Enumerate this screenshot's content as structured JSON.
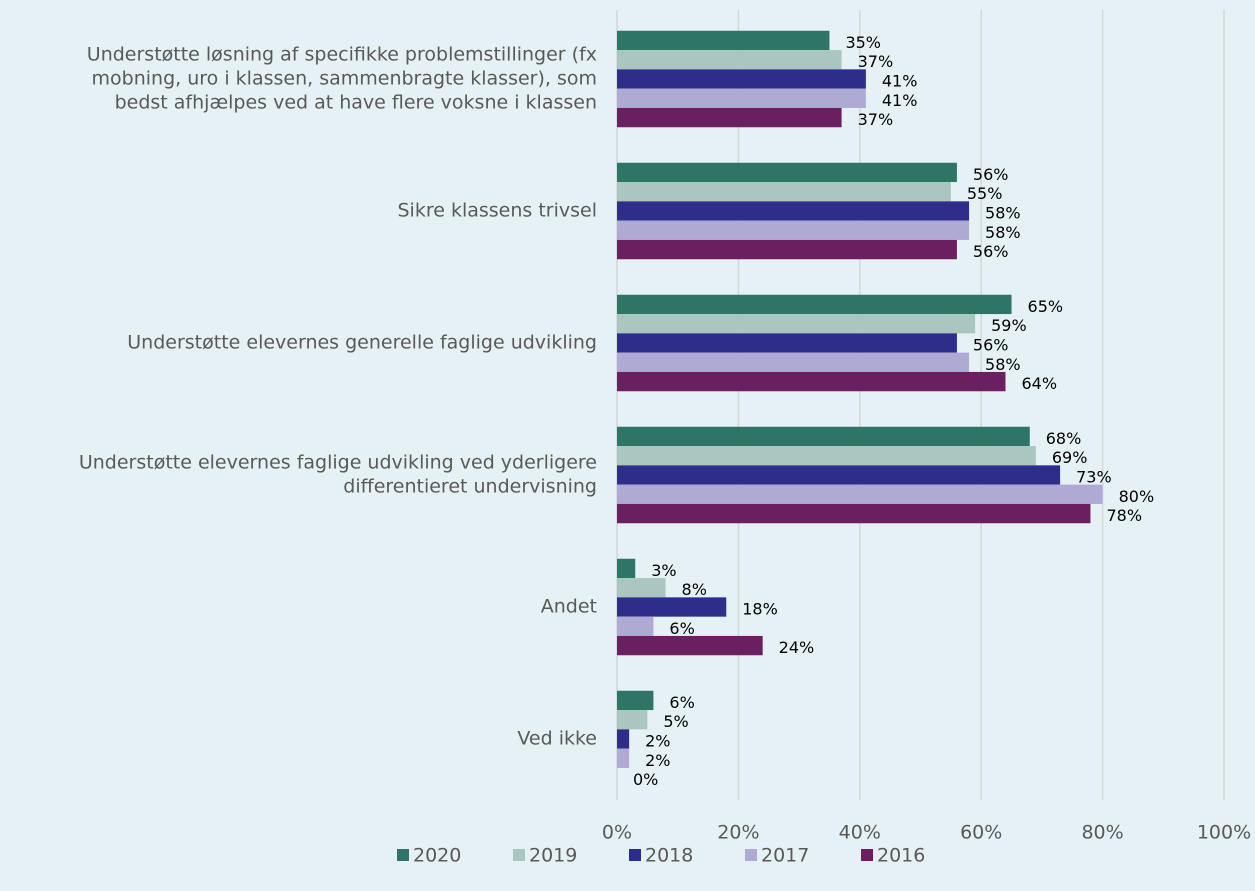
{
  "chart_data": {
    "type": "hbar",
    "categories": [
      [
        "Understøtte løsning af specifikke problemstillinger (fx",
        "mobning, uro i klassen, sammenbragte klasser), som",
        "bedst afhjælpes ved at have flere voksne i klassen"
      ],
      [
        "Sikre klassens trivsel"
      ],
      [
        "Understøtte elevernes generelle faglige udvikling"
      ],
      [
        "Understøtte elevernes faglige udvikling ved yderligere",
        "differentieret undervisning"
      ],
      [
        "Andet"
      ],
      [
        "Ved ikke"
      ]
    ],
    "series": [
      {
        "name": "2020",
        "color": "#2e7566",
        "values": [
          35,
          56,
          65,
          68,
          3,
          6
        ],
        "value_labels": [
          "35%",
          "56%",
          "65%",
          "68%",
          "3%",
          "6%"
        ]
      },
      {
        "name": "2019",
        "color": "#a9c7c0",
        "values": [
          37,
          55,
          59,
          69,
          8,
          5
        ],
        "value_labels": [
          "37%",
          "55%",
          "59%",
          "69%",
          "8%",
          "5%"
        ]
      },
      {
        "name": "2018",
        "color": "#2e2e8a",
        "values": [
          41,
          58,
          56,
          73,
          18,
          2
        ],
        "value_labels": [
          "41%",
          "58%",
          "56%",
          "73%",
          "18%",
          "2%"
        ]
      },
      {
        "name": "2017",
        "color": "#aeaad4",
        "values": [
          41,
          58,
          58,
          80,
          6,
          2
        ],
        "value_labels": [
          "41%",
          "58%",
          "58%",
          "80%",
          "6%",
          "2%"
        ]
      },
      {
        "name": "2016",
        "color": "#6b1f60",
        "values": [
          37,
          56,
          64,
          78,
          24,
          0
        ],
        "value_labels": [
          "37%",
          "56%",
          "64%",
          "78%",
          "24%",
          "0%"
        ]
      }
    ],
    "xlim": [
      0,
      100
    ],
    "xticks": [
      {
        "value": 0,
        "label": "0%"
      },
      {
        "value": 20,
        "label": "20%"
      },
      {
        "value": 40,
        "label": "40%"
      },
      {
        "value": 60,
        "label": "60%"
      },
      {
        "value": 80,
        "label": "80%"
      },
      {
        "value": 100,
        "label": "100%"
      }
    ],
    "grid": true,
    "legend": "bottom"
  }
}
